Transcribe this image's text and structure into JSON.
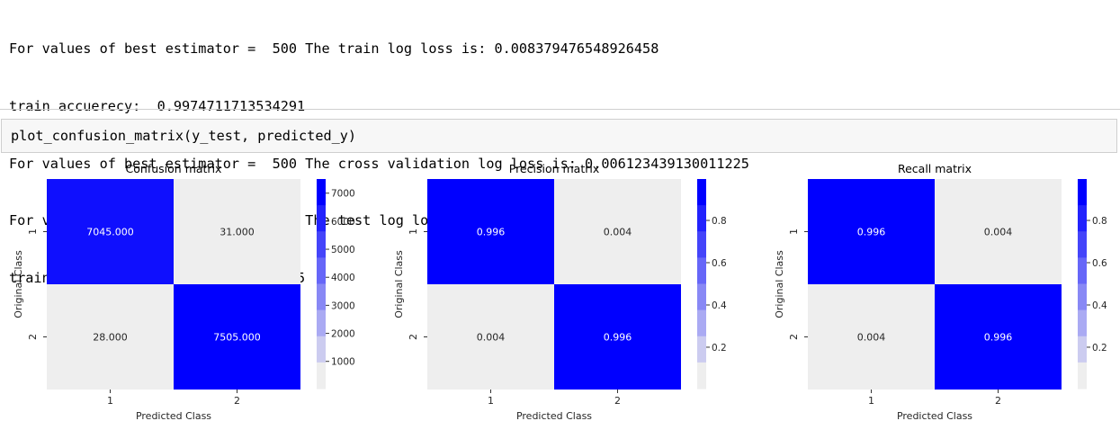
{
  "output": {
    "lines": [
      "For values of best estimator =  500 The train log loss is: 0.008379476548926458",
      "train accuerecy:  0.9974711713534291",
      "For values of best estimator =  500 The cross validation log loss is: 0.006123439130011225",
      "For values of best estimator =  500 The test log loss is: 0.012723964808003972",
      "train accuerecy:  0.9959613936614415"
    ]
  },
  "cell": {
    "code": "plot_confusion_matrix(y_test, predicted_y)"
  },
  "colors": {
    "high": "#0000ff",
    "low": "#eeeeee"
  },
  "chart_data": [
    {
      "type": "heatmap",
      "title": "Confusion matrix",
      "xlabel": "Predicted Class",
      "ylabel": "Original Class",
      "x_categories": [
        "1",
        "2"
      ],
      "y_categories": [
        "1",
        "2"
      ],
      "values": [
        [
          7045,
          31
        ],
        [
          28,
          7505
        ]
      ],
      "cell_labels": [
        [
          "7045.000",
          "31.000"
        ],
        [
          "28.000",
          "7505.000"
        ]
      ],
      "vmin": 28,
      "vmax": 7505,
      "colorbar_ticks": [
        "7000",
        "6000",
        "5000",
        "4000",
        "3000",
        "2000",
        "1000"
      ],
      "colorbar_tick_values": [
        7000,
        6000,
        5000,
        4000,
        3000,
        2000,
        1000
      ]
    },
    {
      "type": "heatmap",
      "title": "Precision matrix",
      "xlabel": "Predicted Class",
      "ylabel": "Original Class",
      "x_categories": [
        "1",
        "2"
      ],
      "y_categories": [
        "1",
        "2"
      ],
      "values": [
        [
          0.996,
          0.004
        ],
        [
          0.004,
          0.996
        ]
      ],
      "cell_labels": [
        [
          "0.996",
          "0.004"
        ],
        [
          "0.004",
          "0.996"
        ]
      ],
      "vmin": 0.004,
      "vmax": 0.996,
      "colorbar_ticks": [
        "0.8",
        "0.6",
        "0.4",
        "0.2"
      ],
      "colorbar_tick_values": [
        0.8,
        0.6,
        0.4,
        0.2
      ]
    },
    {
      "type": "heatmap",
      "title": "Recall matrix",
      "xlabel": "Predicted Class",
      "ylabel": "Original Class",
      "x_categories": [
        "1",
        "2"
      ],
      "y_categories": [
        "1",
        "2"
      ],
      "values": [
        [
          0.996,
          0.004
        ],
        [
          0.004,
          0.996
        ]
      ],
      "cell_labels": [
        [
          "0.996",
          "0.004"
        ],
        [
          "0.004",
          "0.996"
        ]
      ],
      "vmin": 0.004,
      "vmax": 0.996,
      "colorbar_ticks": [
        "0.8",
        "0.6",
        "0.4",
        "0.2"
      ],
      "colorbar_tick_values": [
        0.8,
        0.6,
        0.4,
        0.2
      ]
    }
  ]
}
